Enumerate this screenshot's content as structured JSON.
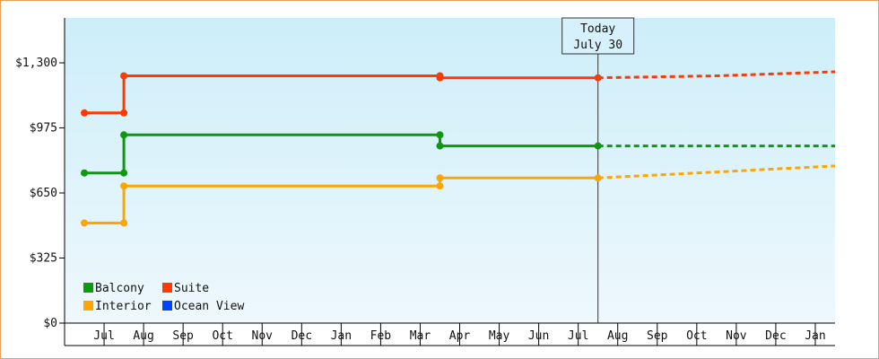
{
  "chart_data": {
    "type": "line",
    "step": true,
    "y_ticks": [
      {
        "value": 0,
        "label": "$0"
      },
      {
        "value": 325,
        "label": "$325"
      },
      {
        "value": 650,
        "label": "$650"
      },
      {
        "value": 975,
        "label": "$975"
      },
      {
        "value": 1300,
        "label": "$1,300"
      }
    ],
    "ylim": [
      0,
      1300
    ],
    "x_ticks": [
      "Jul",
      "Aug",
      "Sep",
      "Oct",
      "Nov",
      "Dec",
      "Jan",
      "Feb",
      "Mar",
      "Apr",
      "May",
      "Jun",
      "Jul",
      "Aug",
      "Sep",
      "Oct",
      "Nov",
      "Dec",
      "Jan"
    ],
    "x_start_index": -0.5,
    "today": {
      "line1": "Today",
      "line2": "July 30",
      "x": 12.5
    },
    "series": [
      {
        "name": "Balcony",
        "color": "#0a9a0a",
        "points": [
          {
            "x": -0.5,
            "y": 750
          },
          {
            "x": 0.5,
            "y": 750
          },
          {
            "x": 0.5,
            "y": 940
          },
          {
            "x": 8.5,
            "y": 940
          },
          {
            "x": 8.5,
            "y": 885
          },
          {
            "x": 12.5,
            "y": 885
          }
        ],
        "markers": [
          -0.5,
          0.5,
          8.5,
          12.5
        ],
        "forecast": [
          {
            "x": 12.5,
            "y": 885
          },
          {
            "x": 18.5,
            "y": 885
          }
        ]
      },
      {
        "name": "Suite",
        "color": "#ff3a00",
        "points": [
          {
            "x": -0.5,
            "y": 1050
          },
          {
            "x": 0.5,
            "y": 1050
          },
          {
            "x": 0.5,
            "y": 1235
          },
          {
            "x": 8.5,
            "y": 1235
          },
          {
            "x": 8.5,
            "y": 1225
          },
          {
            "x": 12.5,
            "y": 1225
          }
        ],
        "markers": [
          -0.5,
          0.5,
          8.5,
          12.5
        ],
        "forecast": [
          {
            "x": 12.5,
            "y": 1225
          },
          {
            "x": 15.5,
            "y": 1235
          },
          {
            "x": 18.5,
            "y": 1255
          }
        ]
      },
      {
        "name": "Interior",
        "color": "#ffa500",
        "points": [
          {
            "x": -0.5,
            "y": 500
          },
          {
            "x": 0.5,
            "y": 500
          },
          {
            "x": 0.5,
            "y": 685
          },
          {
            "x": 8.5,
            "y": 685
          },
          {
            "x": 8.5,
            "y": 725
          },
          {
            "x": 12.5,
            "y": 725
          }
        ],
        "markers": [
          -0.5,
          0.5,
          8.5,
          12.5
        ],
        "forecast": [
          {
            "x": 12.5,
            "y": 725
          },
          {
            "x": 15.5,
            "y": 755
          },
          {
            "x": 18.5,
            "y": 785
          }
        ]
      },
      {
        "name": "Ocean View",
        "color": "#0044ff",
        "points": [],
        "markers": [],
        "forecast": []
      }
    ],
    "legend": {
      "placement": "bottom-left",
      "rows": [
        [
          "Balcony",
          "Suite"
        ],
        [
          "Interior",
          "Ocean View"
        ]
      ]
    },
    "background_gradient": [
      "#cdeef9",
      "#eef8fd"
    ],
    "title": "",
    "xlabel": "",
    "ylabel": ""
  }
}
